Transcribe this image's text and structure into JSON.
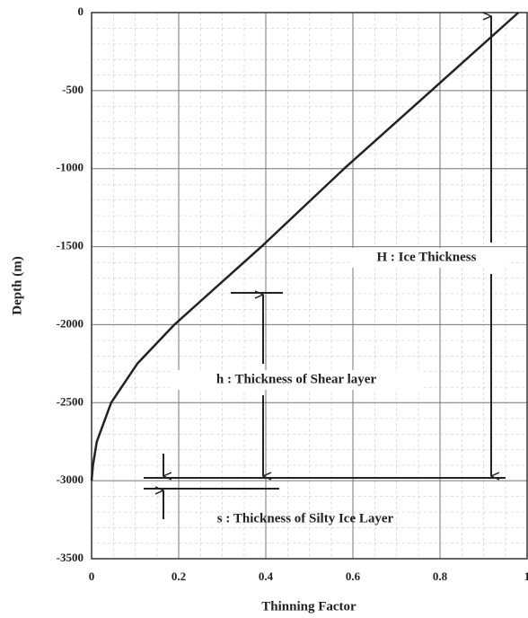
{
  "chart_data": {
    "type": "line",
    "x": [
      0.98,
      0.78,
      0.58,
      0.39,
      0.29,
      0.19,
      0.105,
      0.045,
      0.012,
      0.003,
      0
    ],
    "series": [
      {
        "name": null,
        "color": "#222222",
        "values": [
          0,
          -500,
          -1000,
          -1500,
          -1750,
          -2000,
          -2250,
          -2500,
          -2750,
          -2900,
          -3000
        ]
      }
    ],
    "xlim": [
      0,
      1
    ],
    "ylim": [
      -3500,
      0
    ],
    "xticks": [
      0,
      0.2,
      0.4,
      0.6,
      0.8,
      1
    ],
    "yticks": [
      0,
      -500,
      -1000,
      -1500,
      -2000,
      -2500,
      -3000,
      -3500
    ],
    "grid": true,
    "xlabel": "Thinning Factor",
    "ylabel": "Depth  (m)",
    "annotations": [
      "H : Ice Thickness",
      "h :  Thickness of Shear layer",
      "s : Thickness of Silty Ice Layer"
    ]
  }
}
